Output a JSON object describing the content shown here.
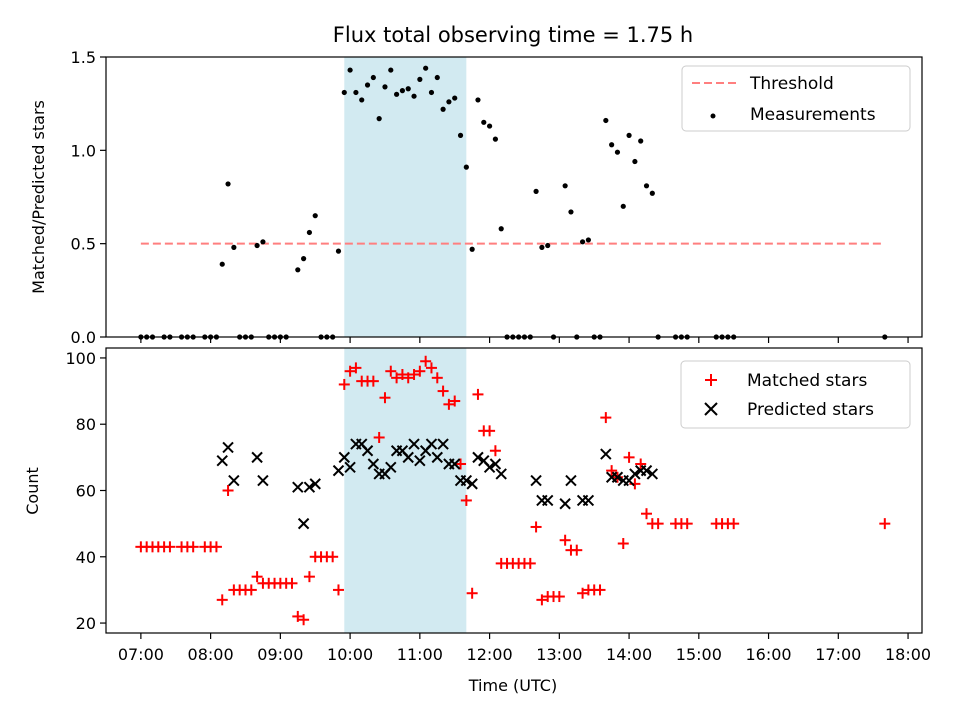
{
  "title": "Flux total observing time = 1.75 h",
  "colors": {
    "threshold": "#ff7f7f",
    "measurement": "#000000",
    "matched": "#ff0000",
    "predicted": "#000000",
    "highlight": "#add8e6"
  },
  "chart_data": [
    {
      "type": "scatter",
      "ylabel": "Matched/Predicted stars",
      "ylim": [
        0,
        1.5
      ],
      "yticks": [
        "0.0",
        "0.5",
        "1.0",
        "1.5"
      ],
      "highlight_span": [
        "09:55",
        "11:40"
      ],
      "legend": {
        "position": "top-right",
        "threshold_label": "Threshold",
        "measurements_label": "Measurements"
      },
      "threshold": {
        "x": [
          "07:00",
          "17:40"
        ],
        "y": 0.5
      },
      "series": [
        {
          "name": "Measurements",
          "points": [
            [
              "07:00",
              0
            ],
            [
              "07:05",
              0
            ],
            [
              "07:10",
              0
            ],
            [
              "07:20",
              0
            ],
            [
              "07:25",
              0
            ],
            [
              "07:35",
              0
            ],
            [
              "07:40",
              0
            ],
            [
              "07:45",
              0
            ],
            [
              "07:55",
              0
            ],
            [
              "08:00",
              0
            ],
            [
              "08:05",
              0
            ],
            [
              "08:10",
              0.39
            ],
            [
              "08:15",
              0.82
            ],
            [
              "08:20",
              0.48
            ],
            [
              "08:25",
              0
            ],
            [
              "08:30",
              0
            ],
            [
              "08:35",
              0
            ],
            [
              "08:40",
              0.49
            ],
            [
              "08:45",
              0.51
            ],
            [
              "08:50",
              0
            ],
            [
              "08:55",
              0
            ],
            [
              "09:00",
              0
            ],
            [
              "09:05",
              0
            ],
            [
              "09:15",
              0.36
            ],
            [
              "09:20",
              0.42
            ],
            [
              "09:25",
              0.56
            ],
            [
              "09:30",
              0.65
            ],
            [
              "09:35",
              0
            ],
            [
              "09:40",
              0
            ],
            [
              "09:45",
              0
            ],
            [
              "09:50",
              0.46
            ],
            [
              "09:55",
              1.31
            ],
            [
              "10:00",
              1.43
            ],
            [
              "10:05",
              1.31
            ],
            [
              "10:10",
              1.27
            ],
            [
              "10:15",
              1.35
            ],
            [
              "10:20",
              1.39
            ],
            [
              "10:25",
              1.17
            ],
            [
              "10:30",
              1.34
            ],
            [
              "10:35",
              1.43
            ],
            [
              "10:40",
              1.3
            ],
            [
              "10:45",
              1.32
            ],
            [
              "10:50",
              1.33
            ],
            [
              "10:55",
              1.29
            ],
            [
              "11:00",
              1.38
            ],
            [
              "11:05",
              1.44
            ],
            [
              "11:10",
              1.31
            ],
            [
              "11:15",
              1.39
            ],
            [
              "11:20",
              1.22
            ],
            [
              "11:25",
              1.26
            ],
            [
              "11:30",
              1.28
            ],
            [
              "11:35",
              1.08
            ],
            [
              "11:40",
              0.91
            ],
            [
              "11:45",
              0.47
            ],
            [
              "11:50",
              1.27
            ],
            [
              "11:55",
              1.15
            ],
            [
              "12:00",
              1.13
            ],
            [
              "12:05",
              1.06
            ],
            [
              "12:10",
              0.58
            ],
            [
              "12:15",
              0
            ],
            [
              "12:20",
              0
            ],
            [
              "12:25",
              0
            ],
            [
              "12:30",
              0
            ],
            [
              "12:35",
              0
            ],
            [
              "12:40",
              0.78
            ],
            [
              "12:45",
              0.48
            ],
            [
              "12:50",
              0.49
            ],
            [
              "12:55",
              0
            ],
            [
              "13:05",
              0.81
            ],
            [
              "13:10",
              0.67
            ],
            [
              "13:15",
              0
            ],
            [
              "13:20",
              0.51
            ],
            [
              "13:25",
              0.52
            ],
            [
              "13:30",
              0
            ],
            [
              "13:35",
              0
            ],
            [
              "13:40",
              1.16
            ],
            [
              "13:45",
              1.03
            ],
            [
              "13:50",
              0.99
            ],
            [
              "13:55",
              0.7
            ],
            [
              "14:00",
              1.08
            ],
            [
              "14:05",
              0.94
            ],
            [
              "14:10",
              1.05
            ],
            [
              "14:15",
              0.81
            ],
            [
              "14:20",
              0.77
            ],
            [
              "14:25",
              0
            ],
            [
              "14:40",
              0
            ],
            [
              "14:45",
              0
            ],
            [
              "14:50",
              0
            ],
            [
              "15:15",
              0
            ],
            [
              "15:20",
              0
            ],
            [
              "15:25",
              0
            ],
            [
              "15:30",
              0
            ],
            [
              "17:40",
              0
            ]
          ]
        }
      ]
    },
    {
      "type": "scatter",
      "xlabel": "Time (UTC)",
      "ylabel": "Count",
      "ylim": [
        17,
        103
      ],
      "xlim": [
        "06:30",
        "18:12"
      ],
      "yticks": [
        "20",
        "40",
        "60",
        "80",
        "100"
      ],
      "xticks": [
        "07:00",
        "08:00",
        "09:00",
        "10:00",
        "11:00",
        "12:00",
        "13:00",
        "14:00",
        "15:00",
        "16:00",
        "17:00",
        "18:00"
      ],
      "highlight_span": [
        "09:55",
        "11:40"
      ],
      "legend": {
        "position": "top-right",
        "matched_label": "Matched stars",
        "predicted_label": "Predicted stars"
      },
      "series": [
        {
          "name": "Matched stars",
          "points": [
            [
              "07:00",
              43
            ],
            [
              "07:05",
              43
            ],
            [
              "07:10",
              43
            ],
            [
              "07:15",
              43
            ],
            [
              "07:20",
              43
            ],
            [
              "07:25",
              43
            ],
            [
              "07:35",
              43
            ],
            [
              "07:40",
              43
            ],
            [
              "07:45",
              43
            ],
            [
              "07:55",
              43
            ],
            [
              "08:00",
              43
            ],
            [
              "08:05",
              43
            ],
            [
              "08:10",
              27
            ],
            [
              "08:15",
              60
            ],
            [
              "08:20",
              30
            ],
            [
              "08:25",
              30
            ],
            [
              "08:30",
              30
            ],
            [
              "08:35",
              30
            ],
            [
              "08:40",
              34
            ],
            [
              "08:45",
              32
            ],
            [
              "08:50",
              32
            ],
            [
              "08:55",
              32
            ],
            [
              "09:00",
              32
            ],
            [
              "09:05",
              32
            ],
            [
              "09:10",
              32
            ],
            [
              "09:15",
              22
            ],
            [
              "09:20",
              21
            ],
            [
              "09:25",
              34
            ],
            [
              "09:30",
              40
            ],
            [
              "09:35",
              40
            ],
            [
              "09:40",
              40
            ],
            [
              "09:45",
              40
            ],
            [
              "09:50",
              30
            ],
            [
              "09:55",
              92
            ],
            [
              "10:00",
              96
            ],
            [
              "10:05",
              97
            ],
            [
              "10:10",
              93
            ],
            [
              "10:15",
              93
            ],
            [
              "10:20",
              93
            ],
            [
              "10:25",
              76
            ],
            [
              "10:30",
              88
            ],
            [
              "10:35",
              96
            ],
            [
              "10:40",
              94
            ],
            [
              "10:45",
              95
            ],
            [
              "10:50",
              94
            ],
            [
              "10:55",
              95
            ],
            [
              "11:00",
              96
            ],
            [
              "11:05",
              99
            ],
            [
              "11:10",
              97
            ],
            [
              "11:15",
              94
            ],
            [
              "11:20",
              90
            ],
            [
              "11:25",
              86
            ],
            [
              "11:30",
              87
            ],
            [
              "11:35",
              68
            ],
            [
              "11:40",
              57
            ],
            [
              "11:45",
              29
            ],
            [
              "11:50",
              89
            ],
            [
              "11:55",
              78
            ],
            [
              "12:00",
              78
            ],
            [
              "12:05",
              72
            ],
            [
              "12:10",
              38
            ],
            [
              "12:15",
              38
            ],
            [
              "12:20",
              38
            ],
            [
              "12:25",
              38
            ],
            [
              "12:30",
              38
            ],
            [
              "12:35",
              38
            ],
            [
              "12:40",
              49
            ],
            [
              "12:45",
              27
            ],
            [
              "12:50",
              28
            ],
            [
              "12:55",
              28
            ],
            [
              "13:00",
              28
            ],
            [
              "13:05",
              45
            ],
            [
              "13:10",
              42
            ],
            [
              "13:15",
              42
            ],
            [
              "13:20",
              29
            ],
            [
              "13:25",
              30
            ],
            [
              "13:30",
              30
            ],
            [
              "13:35",
              30
            ],
            [
              "13:40",
              82
            ],
            [
              "13:45",
              66
            ],
            [
              "13:50",
              64
            ],
            [
              "13:55",
              44
            ],
            [
              "14:00",
              70
            ],
            [
              "14:05",
              62
            ],
            [
              "14:10",
              68
            ],
            [
              "14:15",
              53
            ],
            [
              "14:20",
              50
            ],
            [
              "14:25",
              50
            ],
            [
              "14:40",
              50
            ],
            [
              "14:45",
              50
            ],
            [
              "14:50",
              50
            ],
            [
              "15:15",
              50
            ],
            [
              "15:20",
              50
            ],
            [
              "15:25",
              50
            ],
            [
              "15:30",
              50
            ],
            [
              "17:40",
              50
            ]
          ]
        },
        {
          "name": "Predicted stars",
          "points": [
            [
              "08:10",
              69
            ],
            [
              "08:15",
              73
            ],
            [
              "08:20",
              63
            ],
            [
              "08:40",
              70
            ],
            [
              "08:45",
              63
            ],
            [
              "09:15",
              61
            ],
            [
              "09:20",
              50
            ],
            [
              "09:25",
              61
            ],
            [
              "09:30",
              62
            ],
            [
              "09:50",
              66
            ],
            [
              "09:55",
              70
            ],
            [
              "10:00",
              67
            ],
            [
              "10:05",
              74
            ],
            [
              "10:10",
              74
            ],
            [
              "10:15",
              72
            ],
            [
              "10:20",
              68
            ],
            [
              "10:25",
              65
            ],
            [
              "10:30",
              65
            ],
            [
              "10:35",
              67
            ],
            [
              "10:40",
              72
            ],
            [
              "10:45",
              72
            ],
            [
              "10:50",
              70
            ],
            [
              "10:55",
              74
            ],
            [
              "11:00",
              69
            ],
            [
              "11:05",
              72
            ],
            [
              "11:10",
              74
            ],
            [
              "11:15",
              70
            ],
            [
              "11:20",
              74
            ],
            [
              "11:25",
              68
            ],
            [
              "11:30",
              68
            ],
            [
              "11:35",
              63
            ],
            [
              "11:40",
              63
            ],
            [
              "11:45",
              62
            ],
            [
              "11:50",
              70
            ],
            [
              "11:55",
              69
            ],
            [
              "12:00",
              67
            ],
            [
              "12:05",
              68
            ],
            [
              "12:10",
              65
            ],
            [
              "12:40",
              63
            ],
            [
              "12:45",
              57
            ],
            [
              "12:50",
              57
            ],
            [
              "13:05",
              56
            ],
            [
              "13:10",
              63
            ],
            [
              "13:20",
              57
            ],
            [
              "13:25",
              57
            ],
            [
              "13:40",
              71
            ],
            [
              "13:45",
              64
            ],
            [
              "13:50",
              64
            ],
            [
              "13:55",
              63
            ],
            [
              "14:00",
              63
            ],
            [
              "14:05",
              65
            ],
            [
              "14:10",
              66
            ],
            [
              "14:15",
              66
            ],
            [
              "14:20",
              65
            ]
          ]
        }
      ]
    }
  ]
}
